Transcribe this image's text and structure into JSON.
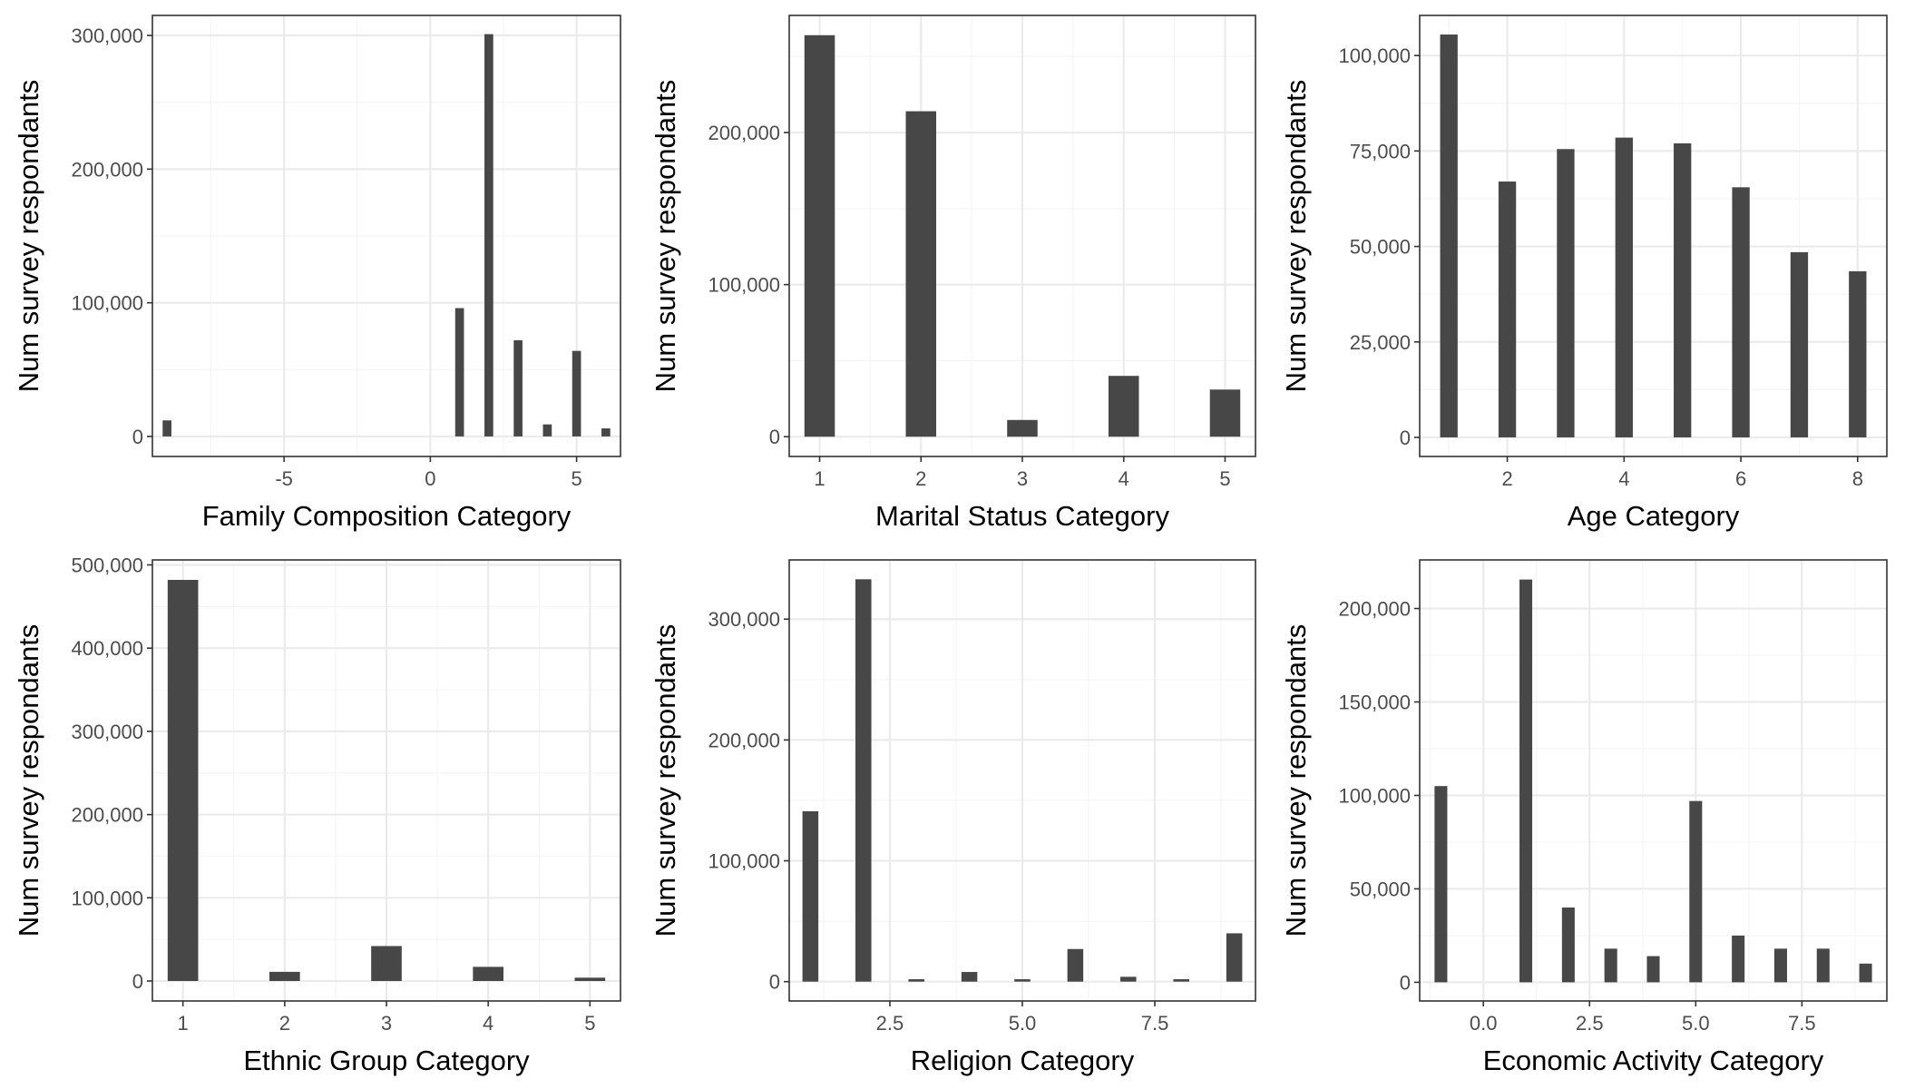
{
  "colors": {
    "bar": "#474747",
    "panel_border": "#333333",
    "grid_major": "#ebebeb",
    "grid_minor": "#f5f5f5",
    "background": "#ffffff"
  },
  "chart_data": [
    {
      "type": "bar",
      "xlabel": "Family Composition Category",
      "ylabel": "Num survey respondants",
      "xlim": [
        -9.5,
        6.5
      ],
      "ylim": [
        -15000,
        315000
      ],
      "xticks": [
        -5,
        0,
        5
      ],
      "xtick_labels": [
        "-5",
        "0",
        "5"
      ],
      "yticks": [
        0,
        100000,
        200000,
        300000
      ],
      "ytick_labels": [
        "0",
        "100,000",
        "200,000",
        "300,000"
      ],
      "grid": true,
      "x": [
        -9,
        1,
        2,
        3,
        4,
        5,
        6
      ],
      "values": [
        12000,
        96000,
        301000,
        72000,
        9000,
        64000,
        6000
      ]
    },
    {
      "type": "bar",
      "xlabel": "Marital Status Category",
      "ylabel": "Num survey respondants",
      "xlim": [
        0.7,
        5.3
      ],
      "ylim": [
        -13000,
        277000
      ],
      "xticks": [
        1,
        2,
        3,
        4,
        5
      ],
      "xtick_labels": [
        "1",
        "2",
        "3",
        "4",
        "5"
      ],
      "yticks": [
        0,
        100000,
        200000
      ],
      "ytick_labels": [
        "0",
        "100,000",
        "200,000"
      ],
      "grid": true,
      "x": [
        1,
        2,
        3,
        4,
        5
      ],
      "values": [
        264000,
        214000,
        11000,
        40000,
        31000
      ]
    },
    {
      "type": "bar",
      "xlabel": "Age Category",
      "ylabel": "Num survey respondants",
      "xlim": [
        0.5,
        8.5
      ],
      "ylim": [
        -5000,
        110500
      ],
      "xticks": [
        2,
        4,
        6,
        8
      ],
      "xtick_labels": [
        "2",
        "4",
        "6",
        "8"
      ],
      "yticks": [
        0,
        25000,
        50000,
        75000,
        100000
      ],
      "ytick_labels": [
        "0",
        "25,000",
        "50,000",
        "75,000",
        "100,000"
      ],
      "grid": true,
      "x": [
        1,
        2,
        3,
        4,
        5,
        6,
        7,
        8
      ],
      "values": [
        105500,
        67000,
        75500,
        78500,
        77000,
        65500,
        48500,
        43500
      ]
    },
    {
      "type": "bar",
      "xlabel": "Ethnic Group Category",
      "ylabel": "Num survey respondants",
      "xlim": [
        0.7,
        5.3
      ],
      "ylim": [
        -24000,
        506000
      ],
      "xticks": [
        1,
        2,
        3,
        4,
        5
      ],
      "xtick_labels": [
        "1",
        "2",
        "3",
        "4",
        "5"
      ],
      "yticks": [
        0,
        100000,
        200000,
        300000,
        400000,
        500000
      ],
      "ytick_labels": [
        "0",
        "100,000",
        "200,000",
        "300,000",
        "400,000",
        "500,000"
      ],
      "grid": true,
      "x": [
        1,
        2,
        3,
        4,
        5
      ],
      "values": [
        482000,
        11000,
        42000,
        17000,
        4000
      ]
    },
    {
      "type": "bar",
      "xlabel": "Religion Category",
      "ylabel": "Num survey respondants",
      "xlim": [
        0.6,
        9.4
      ],
      "ylim": [
        -16000,
        349000
      ],
      "xticks": [
        2.5,
        5.0,
        7.5
      ],
      "xtick_labels": [
        "2.5",
        "5.0",
        "7.5"
      ],
      "yticks": [
        0,
        100000,
        200000,
        300000
      ],
      "ytick_labels": [
        "0",
        "100,000",
        "200,000",
        "300,000"
      ],
      "grid": true,
      "x": [
        1,
        2,
        3,
        4,
        5,
        6,
        7,
        8,
        9
      ],
      "values": [
        141000,
        333000,
        2000,
        8000,
        2000,
        27000,
        4000,
        2000,
        40000
      ]
    },
    {
      "type": "bar",
      "xlabel": "Economic Activity Category",
      "ylabel": "Num survey respondants",
      "xlim": [
        -1.5,
        9.5
      ],
      "ylim": [
        -10000,
        226000
      ],
      "xticks": [
        0,
        2.5,
        5,
        7.5
      ],
      "xtick_labels": [
        "0.0",
        "2.5",
        "5.0",
        "7.5"
      ],
      "yticks": [
        0,
        50000,
        100000,
        150000,
        200000
      ],
      "ytick_labels": [
        "0",
        "50,000",
        "100,000",
        "150,000",
        "200,000"
      ],
      "grid": true,
      "x": [
        -1,
        1,
        2,
        3,
        4,
        5,
        6,
        7,
        8,
        9
      ],
      "values": [
        105000,
        215500,
        40000,
        18000,
        14000,
        97000,
        25000,
        18000,
        18000,
        10000
      ]
    }
  ]
}
